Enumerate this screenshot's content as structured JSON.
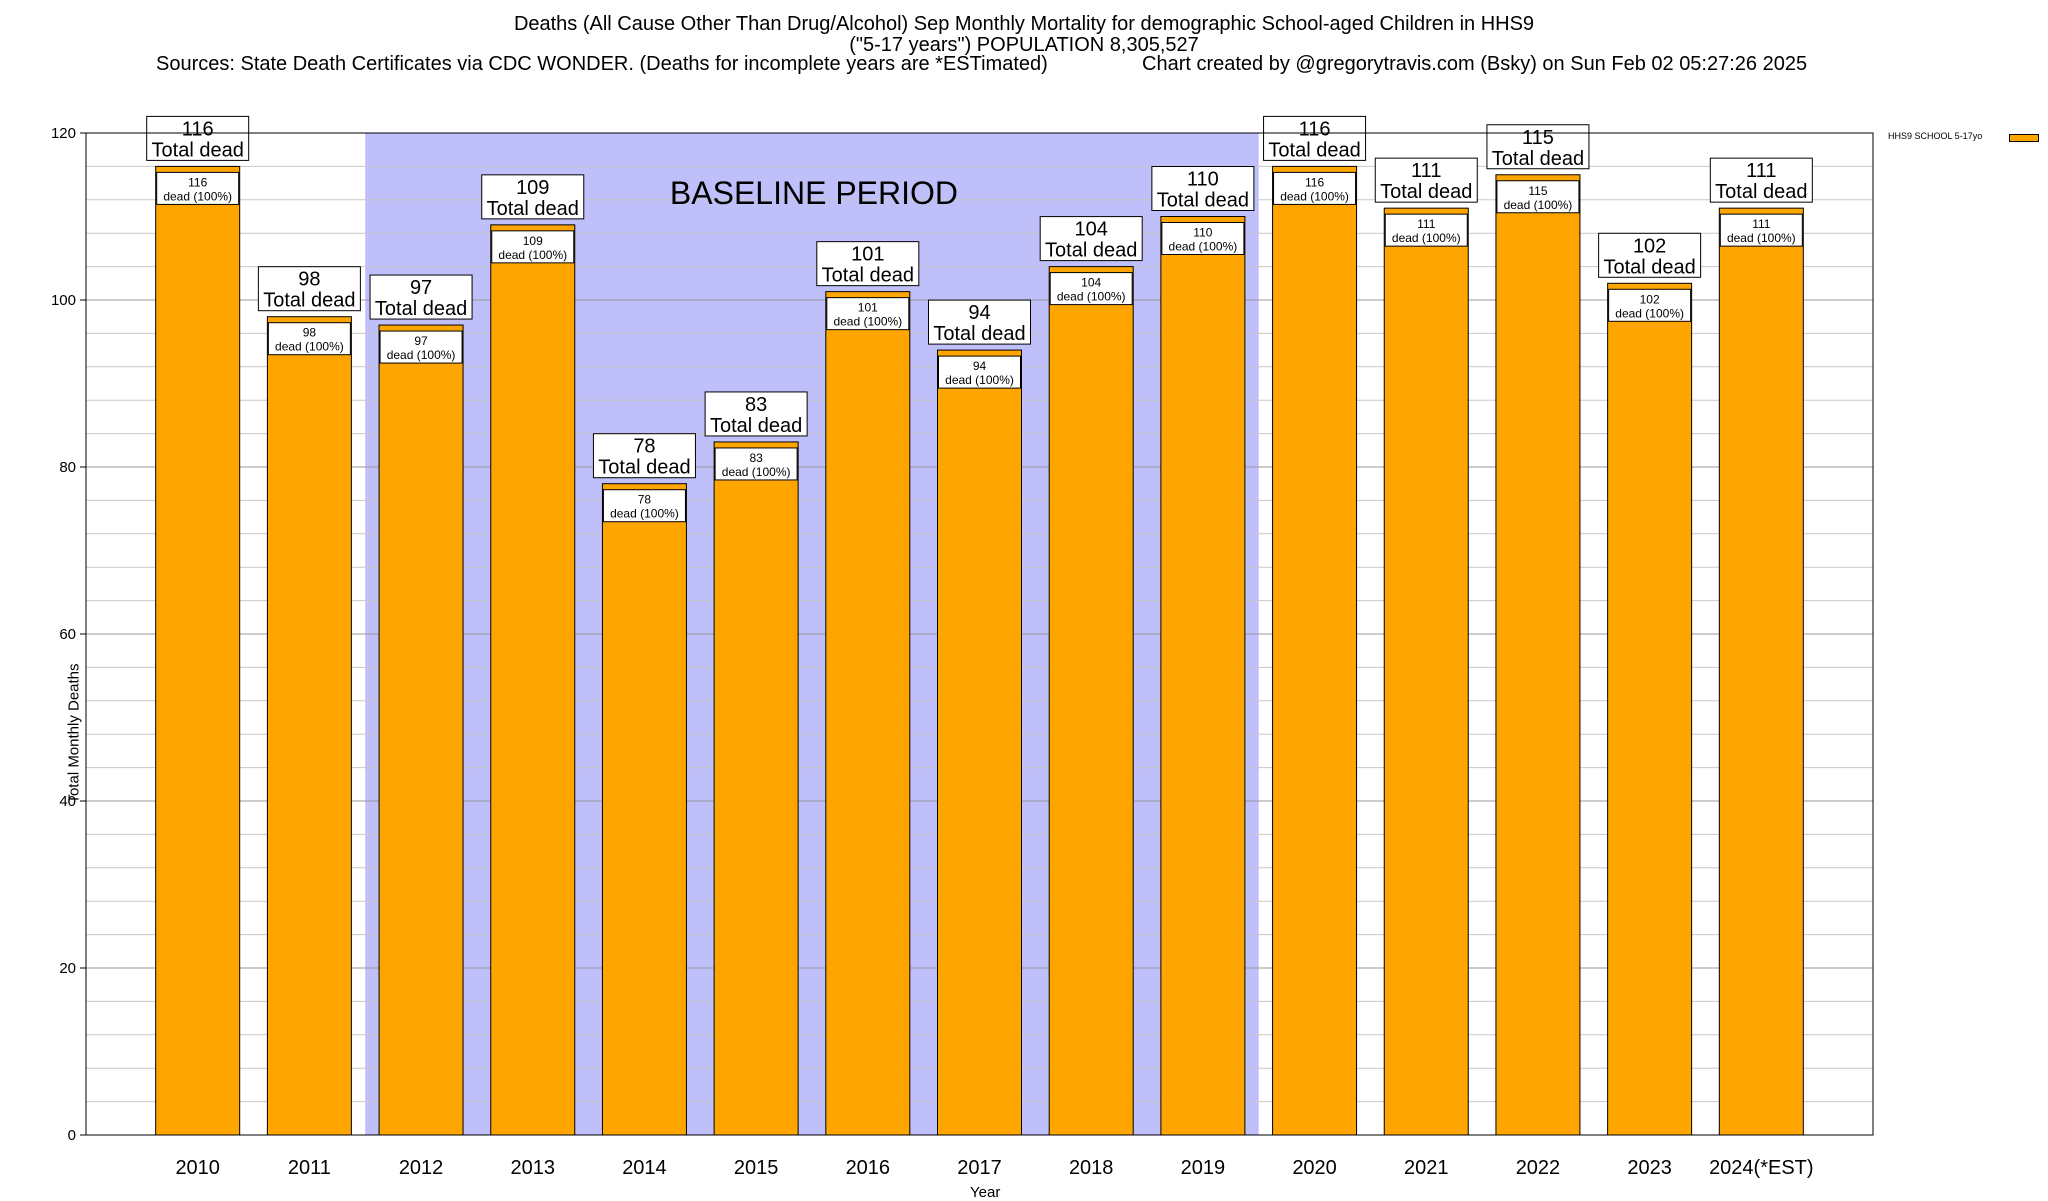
{
  "title": {
    "line1": "Deaths (All Cause Other Than Drug/Alcohol) Sep Monthly Mortality for demographic School-aged Children in HHS9",
    "line2": "(\"5-17 years\") POPULATION 8,305,527",
    "sources": "Sources: State Death Certificates via CDC WONDER. (Deaths for incomplete years are *ESTimated)",
    "credit": "Chart created by @gregorytravis.com (Bsky) on Sun Feb 02 05:27:26 2025"
  },
  "colors": {
    "bar": "#ffa500",
    "baseline_band": "#bfbffa",
    "grid": "#c8c8c8"
  },
  "chart_data": {
    "type": "bar",
    "categories": [
      "2010",
      "2011",
      "2012",
      "2013",
      "2014",
      "2015",
      "2016",
      "2017",
      "2018",
      "2019",
      "2020",
      "2021",
      "2022",
      "2023",
      "2024(*EST)"
    ],
    "series": [
      {
        "name": "HHS9 SCHOOL 5-17yo",
        "values": [
          116,
          98,
          97,
          109,
          78,
          83,
          101,
          94,
          104,
          110,
          116,
          111,
          115,
          102,
          111
        ]
      }
    ],
    "label_top_suffix": "Total dead",
    "label_inner_suffix": "dead (100%)",
    "xlabel": "Year",
    "ylabel": "Total Monthly Deaths",
    "ylim": [
      0,
      120
    ],
    "yticks": [
      0,
      20,
      40,
      60,
      80,
      100,
      120
    ],
    "grid": true,
    "legend_position": "top-right",
    "annotation": {
      "text": "BASELINE PERIOD",
      "from_category": "2012",
      "to_category": "2019"
    }
  }
}
